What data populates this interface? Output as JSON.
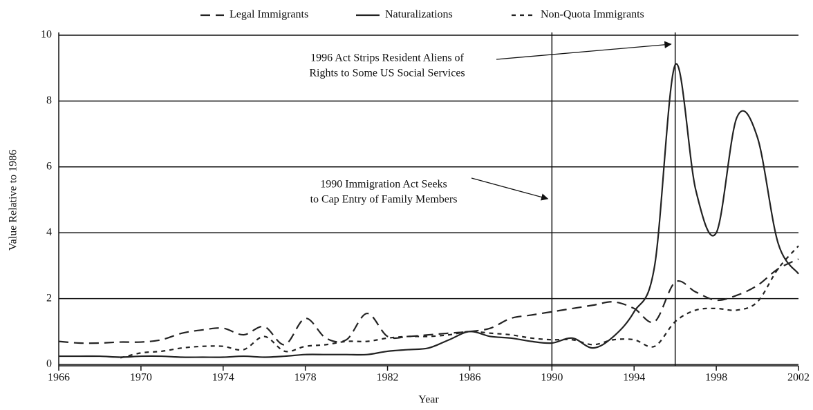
{
  "chart_data": {
    "type": "line",
    "xlabel": "Year",
    "ylabel": "Value Relative to 1986",
    "x": [
      1966,
      1967,
      1968,
      1969,
      1970,
      1971,
      1972,
      1973,
      1974,
      1975,
      1976,
      1977,
      1978,
      1979,
      1980,
      1981,
      1982,
      1983,
      1984,
      1985,
      1986,
      1987,
      1988,
      1989,
      1990,
      1991,
      1992,
      1993,
      1994,
      1995,
      1996,
      1997,
      1998,
      1999,
      2000,
      2001,
      2002
    ],
    "series": [
      {
        "name": "Legal Immigrants",
        "color": "#222222",
        "style": "long-dash",
        "values": [
          0.7,
          0.65,
          0.65,
          0.68,
          0.68,
          0.75,
          0.95,
          1.05,
          1.1,
          0.9,
          1.15,
          0.6,
          1.4,
          0.8,
          0.75,
          1.55,
          0.85,
          0.85,
          0.9,
          0.95,
          1.0,
          1.1,
          1.4,
          1.5,
          1.6,
          1.7,
          1.8,
          1.9,
          1.7,
          1.3,
          2.5,
          2.2,
          1.95,
          2.1,
          2.4,
          2.9,
          3.2
        ]
      },
      {
        "name": "Naturalizations",
        "color": "#222222",
        "style": "solid",
        "values": [
          0.25,
          0.25,
          0.25,
          0.22,
          0.25,
          0.25,
          0.22,
          0.22,
          0.22,
          0.25,
          0.22,
          0.25,
          0.3,
          0.3,
          0.3,
          0.3,
          0.4,
          0.45,
          0.5,
          0.75,
          1.0,
          0.85,
          0.8,
          0.7,
          0.65,
          0.8,
          0.5,
          0.85,
          1.6,
          3.0,
          9.1,
          5.3,
          4.0,
          7.5,
          6.9,
          3.7,
          2.75
        ]
      },
      {
        "name": "Non-Quota Immigrants",
        "color": "#222222",
        "style": "short-dash",
        "values": [
          null,
          null,
          null,
          0.2,
          0.35,
          0.4,
          0.5,
          0.55,
          0.55,
          0.45,
          0.85,
          0.4,
          0.55,
          0.6,
          0.7,
          0.7,
          0.8,
          0.85,
          0.85,
          0.9,
          1.0,
          0.95,
          0.9,
          0.8,
          0.75,
          0.75,
          0.6,
          0.75,
          0.75,
          0.55,
          1.3,
          1.65,
          1.7,
          1.65,
          1.9,
          2.9,
          3.6
        ]
      }
    ],
    "xlim": [
      1966,
      2002
    ],
    "xticks": [
      1966,
      1970,
      1974,
      1978,
      1982,
      1986,
      1990,
      1994,
      1998,
      2002
    ],
    "ylim": [
      0,
      10
    ],
    "yticks": [
      0,
      2,
      4,
      6,
      8,
      10
    ],
    "grid": true,
    "legend": "top",
    "annotations": [
      {
        "x": 1990,
        "text": [
          "1990 Immigration Act Seeks",
          "to Cap Entry of Family Members"
        ]
      },
      {
        "x": 1996,
        "text": [
          "1996 Act Strips Resident Aliens of",
          "Rights to Some US Social Services"
        ]
      }
    ]
  }
}
